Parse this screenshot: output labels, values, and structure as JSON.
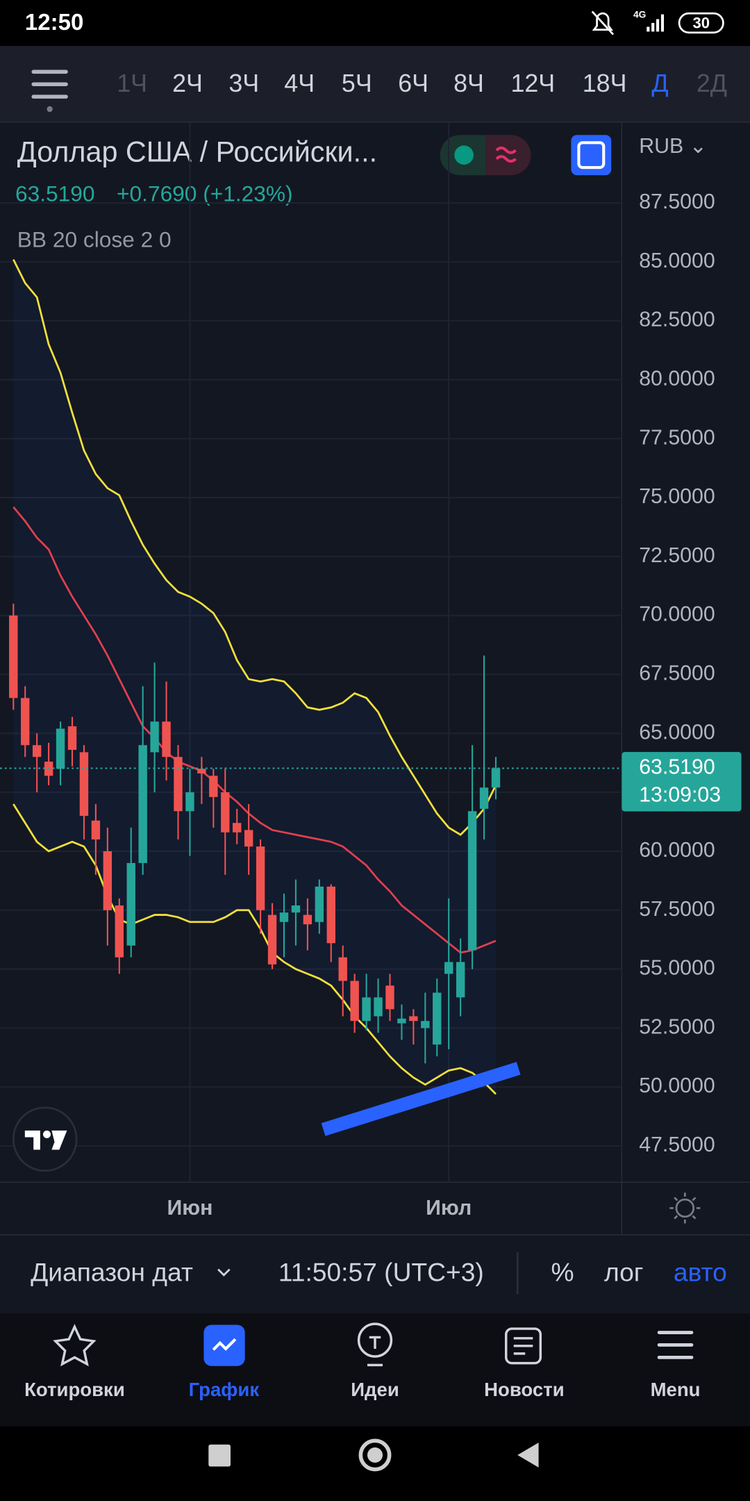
{
  "status_bar": {
    "time": "12:50",
    "network": "4G",
    "battery": "30"
  },
  "toolbar": {
    "timeframes": [
      "1Ч",
      "2Ч",
      "3Ч",
      "4Ч",
      "5Ч",
      "6Ч",
      "8Ч",
      "12Ч",
      "18Ч",
      "Д",
      "2Д"
    ],
    "active_index": 9
  },
  "symbol": {
    "title": "Доллар США / Российски...",
    "price": "63.5190",
    "change": "+0.7690 (+1.23%)",
    "indicator": "BB 20 close 2 0",
    "currency": "RUB ⌄",
    "countdown": "13:09:03"
  },
  "chart_data": {
    "type": "candlestick",
    "categories": [
      null,
      null,
      null,
      null,
      null,
      null,
      null,
      null,
      null,
      null,
      null,
      null,
      null,
      null,
      null,
      "Июн",
      null,
      null,
      null,
      null,
      null,
      null,
      null,
      null,
      null,
      null,
      null,
      null,
      null,
      null,
      null,
      null,
      null,
      null,
      null,
      null,
      null,
      "Июл",
      null,
      null,
      null,
      null
    ],
    "open": [
      70,
      66.5,
      64.5,
      63.8,
      63.5,
      65.3,
      64.2,
      61.3,
      60,
      57.7,
      56,
      59.5,
      64.2,
      65.5,
      64,
      61.7,
      63.5,
      63.2,
      62.5,
      61.2,
      60.9,
      60.2,
      57.3,
      57,
      57.4,
      57.3,
      57,
      58.5,
      55.5,
      54.5,
      52.8,
      53,
      54.3,
      52.7,
      53,
      52.5,
      51.8,
      54.8,
      53.8,
      55.8,
      61.8,
      62.7
    ],
    "high": [
      70.5,
      67,
      65,
      64.6,
      65.5,
      65.7,
      64.5,
      62,
      61,
      58,
      61,
      67,
      68,
      67.2,
      64.5,
      63.5,
      64,
      63.5,
      63.5,
      61.8,
      62,
      60.5,
      57.8,
      58.2,
      58.8,
      58,
      58.8,
      58.6,
      56,
      54.8,
      54.8,
      54.6,
      54.8,
      53.5,
      53.3,
      54,
      54.6,
      58,
      56.3,
      64.5,
      68.3,
      64
    ],
    "low": [
      66,
      64,
      62.5,
      62.8,
      62.8,
      63.6,
      60.5,
      59,
      56,
      54.8,
      55.5,
      59,
      62.5,
      63,
      60.5,
      59.8,
      62,
      61,
      59,
      60.3,
      59,
      56.5,
      55,
      55.5,
      56,
      55.8,
      56.5,
      55.3,
      53,
      52.3,
      52.4,
      52.3,
      52.8,
      52,
      51.8,
      51,
      51.3,
      51.6,
      53,
      55,
      60.5,
      62.2
    ],
    "close": [
      66.5,
      64.5,
      64,
      63.2,
      65.2,
      64.3,
      61.5,
      60.5,
      57.5,
      55.5,
      59.5,
      64.5,
      65.5,
      64,
      61.7,
      62.5,
      63.3,
      62.3,
      60.8,
      60.8,
      60.2,
      57.5,
      55.2,
      57.4,
      57.7,
      56.9,
      58.5,
      56.1,
      54.5,
      52.8,
      53.8,
      53.8,
      53.3,
      52.9,
      52.8,
      52.8,
      54,
      55.3,
      55.3,
      61.7,
      62.7,
      63.519
    ],
    "up_color": "#26a69a",
    "down_color": "#ef5350",
    "bands": [
      {
        "color": "#f2e03a",
        "values": [
          85.1,
          84.1,
          83.5,
          81.5,
          80.3,
          78.6,
          77,
          76,
          75.4,
          75.1,
          74,
          73,
          72.2,
          71.5,
          71,
          70.8,
          70.5,
          70.1,
          69.3,
          68.1,
          67.3,
          67.2,
          67.3,
          67.2,
          66.7,
          66.1,
          66,
          66.1,
          66.3,
          66.7,
          66.5,
          65.9,
          64.9,
          64,
          63.2,
          62.4,
          61.6,
          61,
          60.7,
          61.2,
          61.8,
          62.8
        ]
      },
      {
        "color": "#e0404e",
        "values": [
          74.6,
          74,
          73.3,
          72.8,
          71.7,
          70.8,
          70,
          69.2,
          68.3,
          67.3,
          66.3,
          65.3,
          64.8,
          64.2,
          63.8,
          63.6,
          63.4,
          63,
          62.5,
          62.1,
          61.6,
          61.2,
          60.9,
          60.8,
          60.7,
          60.6,
          60.5,
          60.4,
          60.2,
          59.8,
          59.4,
          58.8,
          58.3,
          57.7,
          57.3,
          56.9,
          56.5,
          56.1,
          55.7,
          55.8,
          56,
          56.2
        ]
      },
      {
        "color": "#f2e03a",
        "values": [
          62,
          61.2,
          60.4,
          60,
          60.2,
          60.4,
          60.2,
          59.4,
          58.1,
          57.1,
          56.9,
          57.1,
          57.3,
          57.3,
          57.2,
          57,
          57,
          57,
          57.2,
          57.5,
          57.5,
          56.7,
          55.7,
          55.3,
          55,
          54.8,
          54.6,
          54.3,
          53.7,
          53,
          52.5,
          51.9,
          51.3,
          50.8,
          50.4,
          50.1,
          50.4,
          50.7,
          50.8,
          50.6,
          50.2,
          49.7
        ]
      }
    ],
    "ylim": [
      45.96,
      90.91
    ],
    "yticks": [
      {
        "value": 87.5,
        "label": "87.5000"
      },
      {
        "value": 85,
        "label": "85.0000"
      },
      {
        "value": 82.5,
        "label": "82.5000"
      },
      {
        "value": 80,
        "label": "80.0000"
      },
      {
        "value": 77.5,
        "label": "77.5000"
      },
      {
        "value": 75,
        "label": "75.0000"
      },
      {
        "value": 72.5,
        "label": "72.5000"
      },
      {
        "value": 70,
        "label": "70.0000"
      },
      {
        "value": 67.5,
        "label": "67.5000"
      },
      {
        "value": 65,
        "label": "65.0000"
      },
      {
        "value": 62.5,
        "label": "62.5000"
      },
      {
        "value": 60,
        "label": "60.0000"
      },
      {
        "value": 57.5,
        "label": "57.5000"
      },
      {
        "value": 55,
        "label": "55.0000"
      },
      {
        "value": 52.5,
        "label": "52.5000"
      },
      {
        "value": 50,
        "label": "50.0000"
      },
      {
        "value": 47.5,
        "label": "47.5000"
      }
    ],
    "grid": true
  },
  "bottom_bar": {
    "range": "Диапазон дат",
    "time": "11:50:57 (UTC+3)",
    "percent": "%",
    "log": "лог",
    "auto": "авто"
  },
  "nav": {
    "items": [
      "Котировки",
      "График",
      "Идеи",
      "Новости",
      "Menu"
    ],
    "active_index": 1
  }
}
